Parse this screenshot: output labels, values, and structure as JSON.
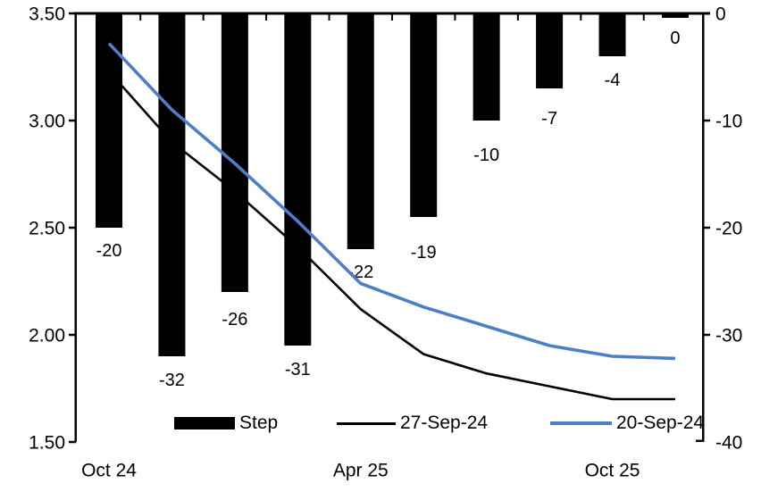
{
  "chart_data": {
    "type": "combo",
    "title": "",
    "grid": "off",
    "categories_count": 10,
    "x_tick_labels": [
      {
        "label": "Oct 24",
        "category_index": 0
      },
      {
        "label": "Apr 25",
        "category_index": 4
      },
      {
        "label": "Oct 25",
        "category_index": 8
      }
    ],
    "bar_series": {
      "name": "Step",
      "axis": "right",
      "color": "#000000",
      "values": [
        -20,
        -32,
        -26,
        -31,
        -22,
        -19,
        -10,
        -7,
        -4,
        0
      ],
      "data_labels": [
        "-20",
        "-32",
        "-26",
        "-31",
        "-22",
        "-19",
        "-10",
        "-7",
        "-4",
        "0"
      ]
    },
    "line_series": [
      {
        "name": "27-Sep-24",
        "axis": "left",
        "color": "#000000",
        "values": [
          3.23,
          2.9,
          2.67,
          2.41,
          2.12,
          1.91,
          1.82,
          1.76,
          1.7,
          1.7
        ]
      },
      {
        "name": "20-Sep-24",
        "axis": "left",
        "color": "#4d7fc6",
        "values": [
          3.36,
          3.05,
          2.8,
          2.53,
          2.24,
          2.13,
          2.04,
          1.95,
          1.9,
          1.89
        ]
      }
    ],
    "left_axis": {
      "min": 1.5,
      "max": 3.5,
      "tick_labels": [
        "3.50",
        "3.00",
        "2.50",
        "2.00",
        "1.50"
      ]
    },
    "right_axis": {
      "min": -40,
      "max": 0,
      "tick_labels": [
        "0",
        "-10",
        "-20",
        "-30",
        "-40"
      ]
    },
    "legend": {
      "position": "bottom-inside",
      "items": [
        {
          "label": "Step",
          "swatch": "bar",
          "color": "#000000"
        },
        {
          "label": "27-Sep-24",
          "swatch": "line",
          "color": "#000000"
        },
        {
          "label": "20-Sep-24",
          "swatch": "line-thick",
          "color": "#4d7fc6"
        }
      ]
    }
  }
}
